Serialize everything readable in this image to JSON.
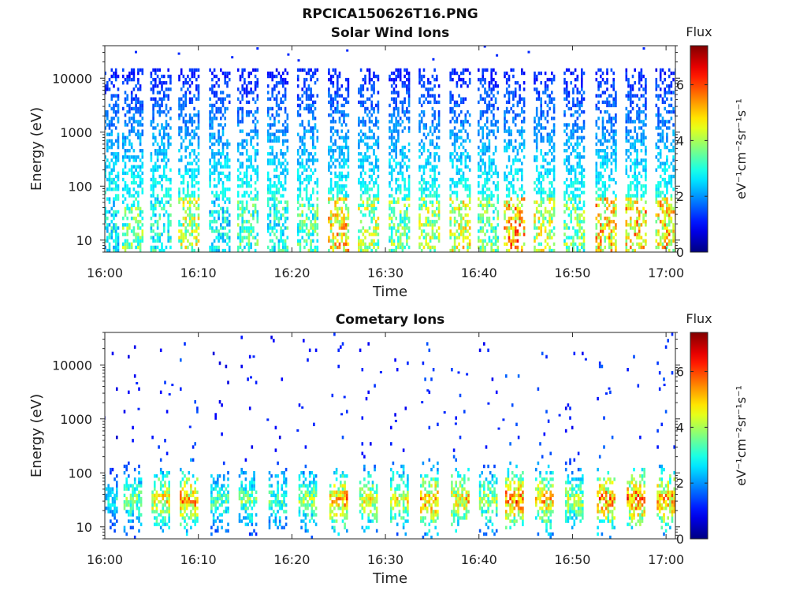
{
  "figure": {
    "title": "RPCICA150626T16.PNG"
  },
  "chart_data": [
    {
      "type": "heatmap",
      "title": "Solar Wind Ions",
      "xlabel": "Time",
      "ylabel": "Energy (eV)",
      "x_ticks": [
        "16:00",
        "16:10",
        "16:20",
        "16:30",
        "16:40",
        "16:50",
        "17:00"
      ],
      "x_range": [
        "16:00",
        "17:01"
      ],
      "y_scale": "log",
      "y_ticks": [
        "10",
        "100",
        "1000",
        "10000"
      ],
      "y_range": [
        6,
        40000
      ],
      "colorbar": {
        "label": "Flux",
        "units": "eV⁻¹cm⁻²sr⁻¹s⁻¹",
        "ticks": [
          "0",
          "2",
          "4",
          "6"
        ],
        "range": [
          0,
          7.4
        ],
        "colormap": "jet"
      },
      "sweep_times_min": [
        0.4,
        3,
        6,
        9,
        12.3,
        15.3,
        18.5,
        21.7,
        25,
        28.2,
        31.5,
        34.7,
        38,
        41,
        43.8,
        47,
        50.2,
        53.6,
        56.8,
        60
      ],
      "high_energy_limit_eV": 15000,
      "peak_flux_low_energy": [
        3.5,
        4.5,
        3.8,
        5.2,
        3.5,
        4.2,
        3.8,
        4.3,
        6.0,
        5.0,
        4.5,
        5.0,
        5.5,
        4.5,
        6.5,
        5.2,
        4.5,
        6.0,
        6.2,
        6.0
      ],
      "scattered_points": [
        {
          "t": 3.2,
          "e": 30000
        },
        {
          "t": 7.8,
          "e": 28000
        },
        {
          "t": 13.5,
          "e": 24000
        },
        {
          "t": 16.2,
          "e": 35000
        },
        {
          "t": 19.5,
          "e": 27000
        },
        {
          "t": 20.6,
          "e": 21000
        },
        {
          "t": 25.8,
          "e": 32000
        },
        {
          "t": 35.0,
          "e": 22000
        },
        {
          "t": 40.5,
          "e": 38000
        },
        {
          "t": 41.8,
          "e": 26000
        },
        {
          "t": 45.2,
          "e": 30000
        },
        {
          "t": 57.5,
          "e": 35000
        }
      ]
    },
    {
      "type": "heatmap",
      "title": "Cometary Ions",
      "xlabel": "Time",
      "ylabel": "Energy (eV)",
      "x_ticks": [
        "16:00",
        "16:10",
        "16:20",
        "16:30",
        "16:40",
        "16:50",
        "17:00"
      ],
      "x_range": [
        "16:00",
        "17:01"
      ],
      "y_scale": "log",
      "y_ticks": [
        "10",
        "100",
        "1000",
        "10000"
      ],
      "y_range": [
        6,
        40000
      ],
      "colorbar": {
        "label": "Flux",
        "units": "eV⁻¹cm⁻²sr⁻¹s⁻¹",
        "ticks": [
          "0",
          "2",
          "4",
          "6"
        ],
        "range": [
          0,
          7.4
        ],
        "colormap": "jet"
      },
      "sweep_times_min": [
        0.4,
        3,
        6,
        9,
        12.3,
        15.3,
        18.5,
        21.7,
        25,
        28.2,
        31.5,
        34.7,
        38,
        41,
        43.8,
        47,
        50.2,
        53.6,
        56.8,
        60
      ],
      "peak_flux": [
        3.5,
        4.5,
        5.8,
        6.5,
        4.2,
        4.5,
        4.2,
        4.8,
        6.5,
        5.5,
        5.5,
        6.5,
        6.0,
        5.0,
        7.0,
        6.2,
        5.0,
        6.8,
        7.0,
        6.5
      ],
      "peak_energy_eV": 32,
      "scattered_points": [
        {
          "t": 3.3,
          "e": 4500
        },
        {
          "t": 3.5,
          "e": 1500
        },
        {
          "t": 7.1,
          "e": 4200
        },
        {
          "t": 6.8,
          "e": 2800
        },
        {
          "t": 15.8,
          "e": 14000
        },
        {
          "t": 15.5,
          "e": 5800
        },
        {
          "t": 9.0,
          "e": 700
        },
        {
          "t": 17.3,
          "e": 950
        },
        {
          "t": 21.0,
          "e": 1600
        },
        {
          "t": 25.5,
          "e": 2500
        },
        {
          "t": 25.2,
          "e": 1200
        },
        {
          "t": 29.4,
          "e": 7200
        },
        {
          "t": 33.8,
          "e": 2000
        },
        {
          "t": 34.4,
          "e": 3300
        },
        {
          "t": 37.7,
          "e": 7100
        },
        {
          "t": 38.6,
          "e": 6600
        },
        {
          "t": 40.9,
          "e": 1900
        },
        {
          "t": 48.5,
          "e": 1150
        },
        {
          "t": 51.3,
          "e": 12500
        },
        {
          "t": 53.8,
          "e": 3600
        },
        {
          "t": 53.5,
          "e": 2900
        },
        {
          "t": 59.7,
          "e": 4200
        },
        {
          "t": 31.0,
          "e": 900
        },
        {
          "t": 36.2,
          "e": 1300
        },
        {
          "t": 37.4,
          "e": 800
        },
        {
          "t": 42.5,
          "e": 950
        },
        {
          "t": 42.0,
          "e": 650
        },
        {
          "t": 20.5,
          "e": 600
        }
      ]
    }
  ]
}
